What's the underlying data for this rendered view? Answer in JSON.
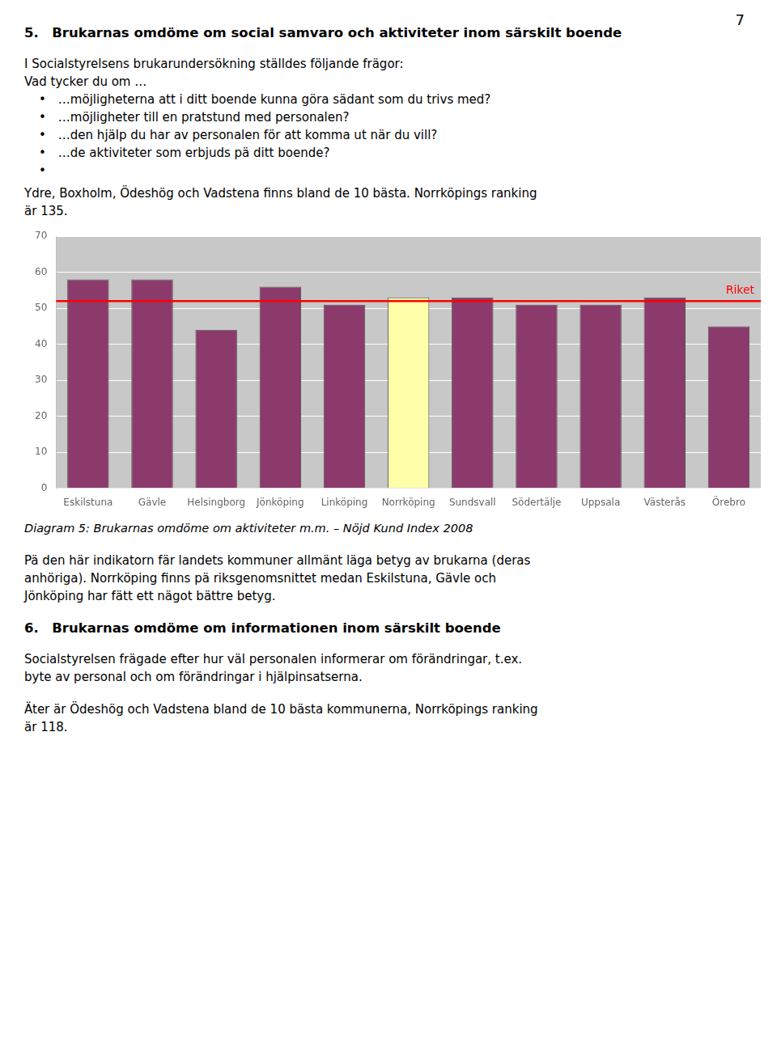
{
  "page_number": "7",
  "before_chart": [
    {
      "heading": "5. Brukarnas omdöme om social samvaro och aktiviteter inom särskilt boende"
    },
    {
      "lines": [
        "I Socialstyrelsens brukarundersökning ställdes följande frägor:",
        "Vad tycker du om …"
      ]
    },
    {
      "bullets": [
        "• …möjligheterna att i ditt boende kunna göra sädant som du trivs med?",
        "• …möjligheter till en pratstund med personalen?",
        "• …den hjälp du har av personalen för att komma ut när du vill?",
        "• …de aktiviteter som erbjuds pä ditt boende?",
        "•"
      ]
    },
    {
      "lines": [
        "Ydre, Boxholm, Ödeshög och Vadstena finns bland de 10 bästa. Norrköpings ranking",
        "är 135."
      ]
    }
  ],
  "chart_data": {
    "type": "bar",
    "title": "Diagram 5: Brukarnas omdöme om aktiviteter m.m. – Nöjd Kund Index 2008",
    "categories": [
      "Eskilstuna",
      "Gävle",
      "Helsingborg",
      "Jönköping",
      "Linköping",
      "Norrköping",
      "Sundsvall",
      "Södertälje",
      "Uppsala",
      "Västerås",
      "Örebro"
    ],
    "values": [
      58,
      58,
      44,
      56,
      51,
      53,
      53,
      51,
      51,
      53,
      45
    ],
    "colors": [
      "#8B3A6B",
      "#8B3A6B",
      "#8B3A6B",
      "#8B3A6B",
      "#8B3A6B",
      "#FFFFAA",
      "#8B3A6B",
      "#8B3A6B",
      "#8B3A6B",
      "#8B3A6B",
      "#8B3A6B"
    ],
    "annotations": [
      {
        "type": "hline",
        "value": 52,
        "label": "Riket",
        "color": "#FF0000"
      }
    ],
    "ylim": [
      0,
      70
    ],
    "yticks": [
      0,
      10,
      20,
      30,
      40,
      50,
      60,
      70
    ],
    "grid": true
  },
  "after_chart": [
    {
      "lines": [
        "Pä den här indikatorn fär landets kommuner allmänt läga betyg av brukarna (deras",
        "anhöriga). Norrköping finns pä riksgenomsnittet medan Eskilstuna, Gävle och",
        "Jönköping har fätt ett nägot bättre betyg."
      ]
    },
    {
      "heading": "6. Brukarnas omdöme om informationen inom särskilt boende"
    },
    {
      "lines": [
        "Socialstyrelsen frägade efter hur väl personalen informerar om förändringar, t.ex.",
        "byte av personal och om förändringar i hjälpinsatserna."
      ]
    },
    {
      "lines": [
        "Äter är Ödeshög och Vadstena bland de 10 bästa kommunerna, Norrköpings ranking",
        "är 118."
      ]
    }
  ]
}
